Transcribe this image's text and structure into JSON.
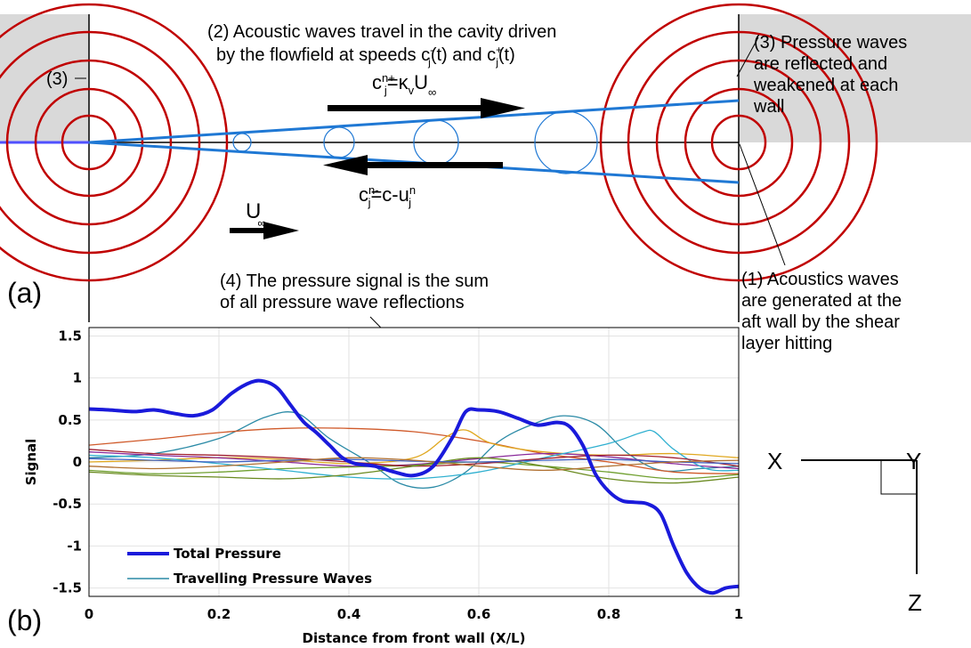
{
  "panel_a": {
    "label": "(a)",
    "ann2_line1": "(2) Acoustic waves travel in the cavity driven",
    "ann2_line2": "by the flowfield at speeds c",
    "ann3_left": "(3)",
    "ann3_right_lines": [
      "(3) Pressure waves",
      "are reflected and",
      "weakened at each",
      "wall"
    ],
    "ann1_lines": [
      "(1) Acoustics waves",
      "are generated at the",
      "aft wall by the shear",
      "layer hitting"
    ],
    "ann4_lines": [
      "(4) The pressure signal is the sum",
      "of all pressure wave reflections"
    ],
    "eq_forward": "c",
    "eq_backward": "c",
    "freestream": "U",
    "colors": {
      "cavity_wall": "#d9d9d9",
      "wave_rings": "#c00000",
      "beams": "#1f78d4",
      "shear_line": "#5050ff"
    }
  },
  "panel_b": {
    "label": "(b)",
    "axes_glyph": {
      "x": "X",
      "y": "Y",
      "z": "Z"
    }
  },
  "chart_data": {
    "type": "line",
    "xlabel": "Distance from front wall (X/L)",
    "ylabel": "Signal",
    "xlim": [
      0,
      1
    ],
    "ylim": [
      -1.6,
      1.6
    ],
    "xticks": [
      0,
      0.2,
      0.4,
      0.6,
      0.8,
      1
    ],
    "xtick_labels": [
      "0",
      "0.2",
      "0.4",
      "0.6",
      "0.8",
      "1"
    ],
    "yticks": [
      1.5,
      1,
      0.5,
      0,
      -0.5,
      -1,
      -1.5
    ],
    "ytick_labels": [
      "1.5",
      "1",
      "0.5",
      "0",
      "-0.5",
      "-1",
      "-1.5"
    ],
    "grid": true,
    "legend_position": "bottom-left",
    "legend": [
      "Total Pressure",
      "Travelling Pressure Waves"
    ],
    "total_pressure": {
      "name": "Total Pressure",
      "color": "#1a1adb",
      "x": [
        0,
        0.03,
        0.07,
        0.1,
        0.13,
        0.16,
        0.19,
        0.22,
        0.25,
        0.27,
        0.29,
        0.31,
        0.33,
        0.35,
        0.37,
        0.39,
        0.41,
        0.44,
        0.47,
        0.5,
        0.53,
        0.56,
        0.58,
        0.6,
        0.63,
        0.66,
        0.69,
        0.72,
        0.74,
        0.76,
        0.78,
        0.8,
        0.82,
        0.84,
        0.86,
        0.88,
        0.9,
        0.92,
        0.94,
        0.96,
        0.98,
        1
      ],
      "y": [
        0.63,
        0.62,
        0.6,
        0.62,
        0.58,
        0.55,
        0.62,
        0.82,
        0.95,
        0.96,
        0.88,
        0.68,
        0.48,
        0.35,
        0.2,
        0.05,
        -0.02,
        -0.05,
        -0.12,
        -0.16,
        -0.05,
        0.3,
        0.6,
        0.62,
        0.6,
        0.52,
        0.44,
        0.47,
        0.42,
        0.2,
        -0.15,
        -0.35,
        -0.46,
        -0.48,
        -0.5,
        -0.62,
        -1.0,
        -1.32,
        -1.5,
        -1.56,
        -1.5,
        -1.48
      ]
    },
    "travelling_waves": [
      {
        "color": "#2a8aa6",
        "x": [
          0,
          0.1,
          0.2,
          0.27,
          0.32,
          0.37,
          0.43,
          0.48,
          0.53,
          0.58,
          0.63,
          0.68,
          0.73,
          0.78,
          0.83,
          0.88,
          0.94,
          1
        ],
        "y": [
          0.05,
          0.1,
          0.28,
          0.53,
          0.58,
          0.28,
          0.0,
          -0.26,
          -0.3,
          -0.12,
          0.24,
          0.44,
          0.55,
          0.45,
          0.1,
          -0.1,
          -0.08,
          -0.05
        ]
      },
      {
        "color": "#d05a2a",
        "x": [
          0,
          0.1,
          0.2,
          0.3,
          0.4,
          0.5,
          0.6,
          0.7,
          0.8,
          0.9,
          1
        ],
        "y": [
          0.2,
          0.27,
          0.35,
          0.4,
          0.4,
          0.36,
          0.25,
          0.1,
          0.0,
          -0.12,
          -0.14
        ]
      },
      {
        "color": "#e0a820",
        "x": [
          0,
          0.1,
          0.2,
          0.3,
          0.4,
          0.5,
          0.55,
          0.58,
          0.62,
          0.7,
          0.8,
          0.9,
          1
        ],
        "y": [
          0.0,
          0.02,
          0.05,
          0.03,
          -0.02,
          0.05,
          0.3,
          0.38,
          0.22,
          0.12,
          0.08,
          0.1,
          0.05
        ]
      },
      {
        "color": "#8a2a9a",
        "x": [
          0,
          0.1,
          0.2,
          0.3,
          0.4,
          0.5,
          0.6,
          0.7,
          0.8,
          0.9,
          1
        ],
        "y": [
          0.12,
          0.08,
          0.05,
          0.0,
          -0.05,
          -0.03,
          0.04,
          0.1,
          0.06,
          -0.02,
          -0.08
        ]
      },
      {
        "color": "#70a030",
        "x": [
          0,
          0.1,
          0.2,
          0.3,
          0.4,
          0.5,
          0.6,
          0.7,
          0.8,
          0.9,
          1
        ],
        "y": [
          -0.1,
          -0.14,
          -0.12,
          -0.08,
          -0.06,
          -0.04,
          0.0,
          -0.05,
          -0.12,
          -0.2,
          -0.15
        ]
      },
      {
        "color": "#30b0d0",
        "x": [
          0,
          0.1,
          0.2,
          0.3,
          0.4,
          0.5,
          0.6,
          0.7,
          0.8,
          0.85,
          0.87,
          0.9,
          0.95,
          1
        ],
        "y": [
          0.08,
          0.05,
          -0.02,
          -0.1,
          -0.18,
          -0.2,
          -0.12,
          0.05,
          0.22,
          0.35,
          0.36,
          0.15,
          -0.08,
          -0.1
        ]
      },
      {
        "color": "#a02030",
        "x": [
          0,
          0.1,
          0.2,
          0.3,
          0.4,
          0.5,
          0.6,
          0.7,
          0.8,
          0.9,
          1
        ],
        "y": [
          0.15,
          0.1,
          0.08,
          0.05,
          0.0,
          -0.05,
          -0.02,
          0.04,
          0.08,
          0.05,
          -0.05
        ]
      },
      {
        "color": "#6a8a20",
        "x": [
          0,
          0.1,
          0.2,
          0.3,
          0.4,
          0.5,
          0.6,
          0.7,
          0.8,
          0.9,
          1
        ],
        "y": [
          -0.12,
          -0.16,
          -0.18,
          -0.2,
          -0.15,
          -0.05,
          0.05,
          -0.05,
          -0.2,
          -0.25,
          -0.18
        ]
      },
      {
        "color": "#4060c0",
        "x": [
          0,
          0.1,
          0.2,
          0.3,
          0.4,
          0.5,
          0.6,
          0.7,
          0.8,
          0.9,
          1
        ],
        "y": [
          0.04,
          0.02,
          0.0,
          0.02,
          0.03,
          0.01,
          0.0,
          0.02,
          0.03,
          0.0,
          -0.02
        ]
      },
      {
        "color": "#b07030",
        "x": [
          0,
          0.1,
          0.2,
          0.3,
          0.4,
          0.5,
          0.6,
          0.7,
          0.8,
          0.9,
          1
        ],
        "y": [
          -0.05,
          -0.08,
          -0.05,
          0.0,
          0.05,
          0.02,
          -0.05,
          -0.1,
          -0.05,
          0.0,
          0.02
        ]
      }
    ]
  }
}
